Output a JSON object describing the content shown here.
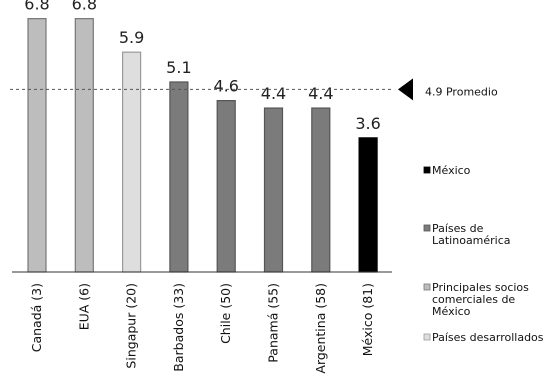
{
  "chart_data": {
    "type": "bar",
    "categories": [
      "Canadá (3)",
      "EUA (6)",
      "Singapur (20)",
      "Barbados (33)",
      "Chile (50)",
      "Panamá (55)",
      "Argentina (58)",
      "México (81)"
    ],
    "values": [
      6.8,
      6.8,
      5.9,
      5.1,
      4.6,
      4.4,
      4.4,
      3.6
    ],
    "value_labels": [
      "6.8",
      "6.8",
      "5.9",
      "5.1",
      "4.6",
      "4.4",
      "4.4",
      "3.6"
    ],
    "groups": [
      "socios",
      "socios",
      "desarrollados",
      "latam",
      "latam",
      "latam",
      "latam",
      "mexico"
    ],
    "ylim": [
      0,
      7.3
    ],
    "reference_line": {
      "value": 4.9,
      "label": "4.9 Promedio",
      "style": "dashed"
    },
    "legend": {
      "placement": "right",
      "items": [
        {
          "key": "mexico",
          "lines": [
            "México"
          ],
          "color": "#000000"
        },
        {
          "key": "latam",
          "lines": [
            "Países de",
            "Latinoamérica"
          ],
          "color": "#7b7b7b"
        },
        {
          "key": "socios",
          "lines": [
            "Principales socios",
            "comerciales de",
            "México"
          ],
          "color": "#bdbdbd"
        },
        {
          "key": "desarrollados",
          "lines": [
            "Países desarrollados"
          ],
          "color": "#dedede"
        }
      ]
    },
    "xlabel": "",
    "ylabel": "",
    "grid": false
  }
}
